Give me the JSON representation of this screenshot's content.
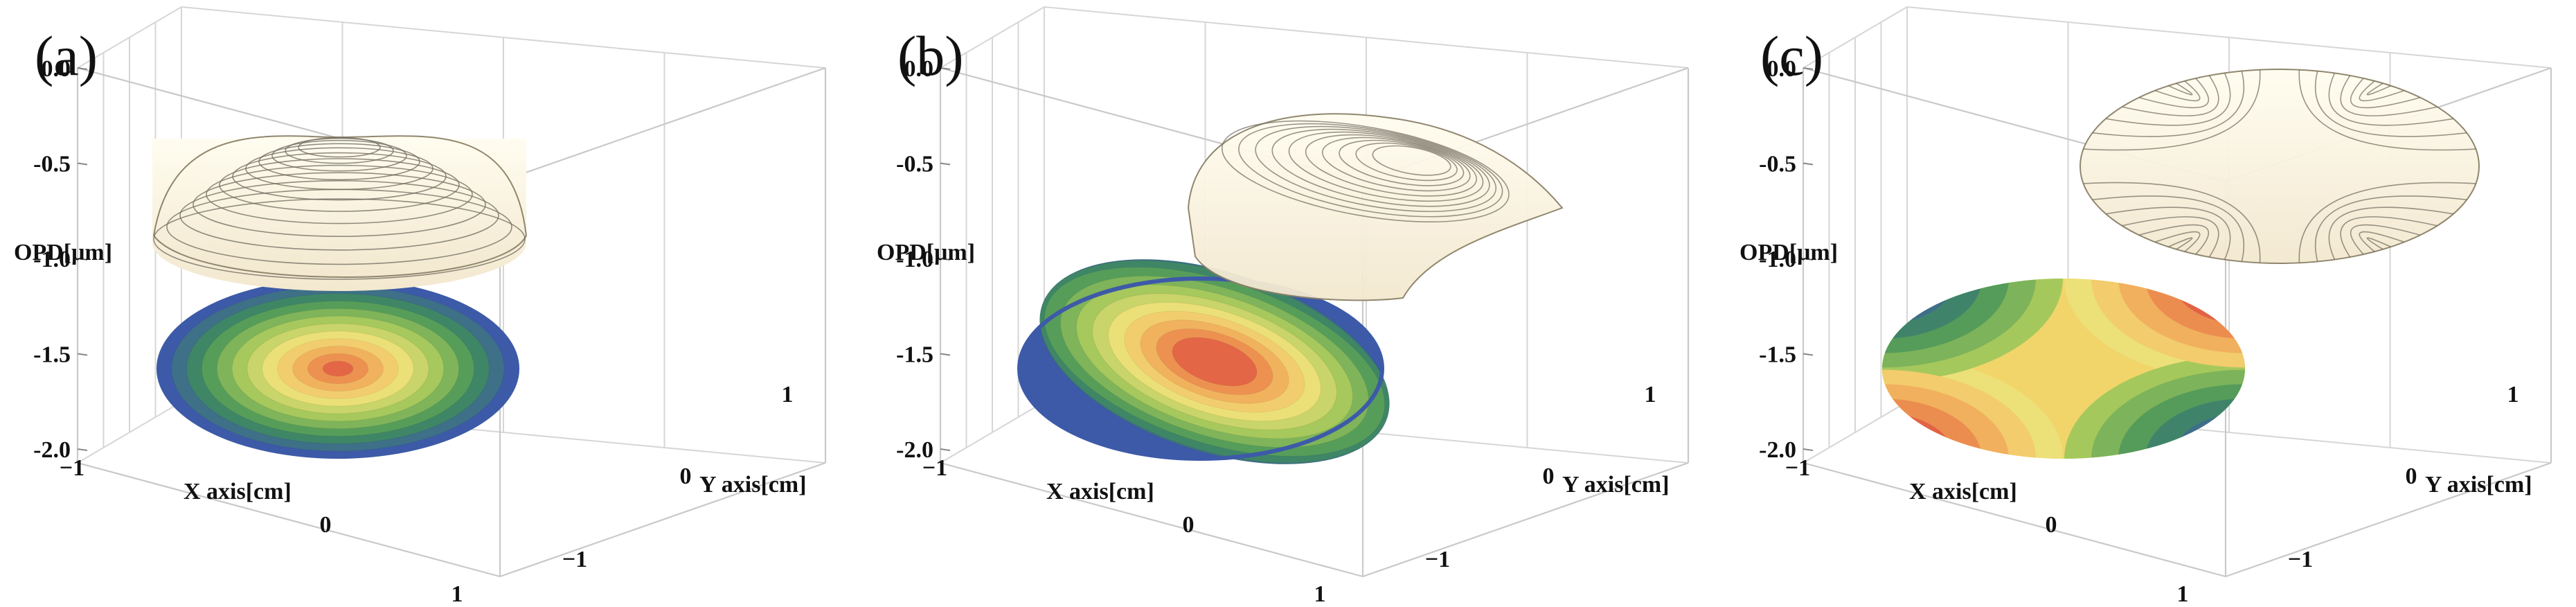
{
  "chart_data": [
    {
      "type": "surface3d",
      "panel_label": "(a)",
      "surface": "defocus",
      "zlabel": "OPD[μm]",
      "xlabel": "X axis[cm]",
      "ylabel": "Y axis[cm]",
      "z_ticks": [
        "0.0",
        "-0.5",
        "-1.0",
        "-1.5",
        "-2.0"
      ],
      "z_values": [
        0.0,
        -0.5,
        -1.0,
        -1.5,
        -2.0
      ],
      "x_ticks": [
        "−1",
        "0",
        "1"
      ],
      "y_ticks": [
        "1",
        "0",
        "−1"
      ],
      "zlim": [
        -2.0,
        0.0
      ],
      "xlim": [
        -1,
        1
      ],
      "ylim": [
        -1,
        1
      ],
      "colormap": [
        "#3d5aa8",
        "#3f8f5a",
        "#9fc65a",
        "#f2e27a",
        "#f1a255",
        "#d93b3b"
      ]
    },
    {
      "type": "surface3d",
      "panel_label": "(b)",
      "surface": "coma",
      "zlabel": "OPD[μm]",
      "xlabel": "X axis[cm]",
      "ylabel": "Y axis[cm]",
      "z_ticks": [
        "0.0",
        "-0.5",
        "-1.0",
        "-1.5",
        "-2.0"
      ],
      "z_values": [
        0.0,
        -0.5,
        -1.0,
        -1.5,
        -2.0
      ],
      "x_ticks": [
        "−1",
        "0",
        "1"
      ],
      "y_ticks": [
        "1",
        "0",
        "−1"
      ],
      "zlim": [
        -2.0,
        0.0
      ],
      "xlim": [
        -1,
        1
      ],
      "ylim": [
        -1,
        1
      ],
      "colormap": [
        "#3d5aa8",
        "#3f8f5a",
        "#9fc65a",
        "#f2e27a",
        "#f1a255",
        "#d93b3b"
      ]
    },
    {
      "type": "surface3d",
      "panel_label": "(c)",
      "surface": "astigmatism",
      "zlabel": "OPD[μm]",
      "xlabel": "X axis[cm]",
      "ylabel": "Y axis[cm]",
      "z_ticks": [
        "0.0",
        "-0.5",
        "-1.0",
        "-1.5",
        "-2.0"
      ],
      "z_values": [
        0.0,
        -0.5,
        -1.0,
        -1.5,
        -2.0
      ],
      "x_ticks": [
        "−1",
        "0",
        "1"
      ],
      "y_ticks": [
        "1",
        "0",
        "−1"
      ],
      "zlim": [
        -2.0,
        0.0
      ],
      "xlim": [
        -1,
        1
      ],
      "ylim": [
        -1,
        1
      ],
      "colormap": [
        "#3d5aa8",
        "#3f8f5a",
        "#9fc65a",
        "#f2e27a",
        "#f1a255",
        "#d93b3b"
      ]
    }
  ]
}
